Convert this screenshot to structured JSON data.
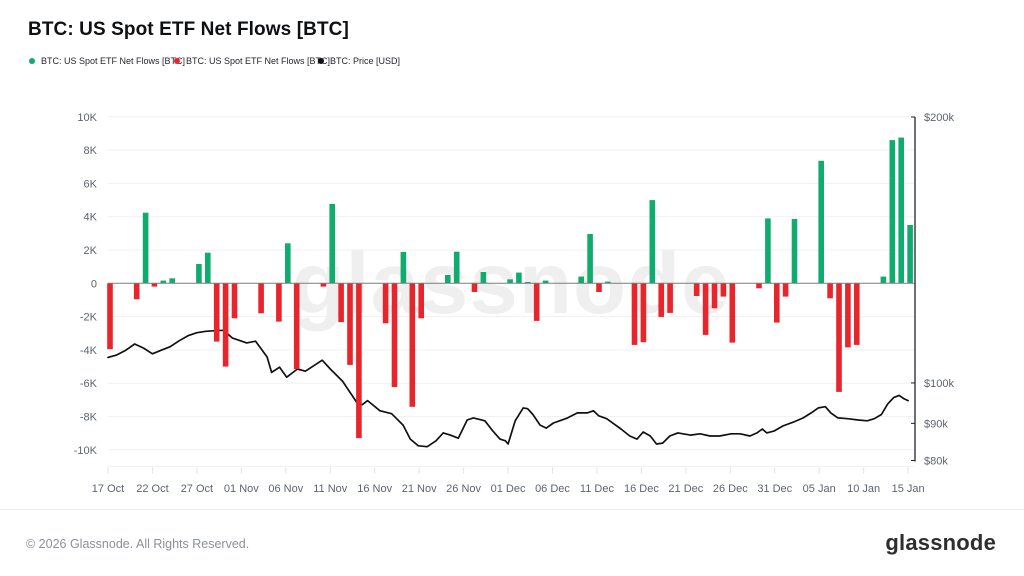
{
  "page": {
    "title": "BTC: US Spot ETF Net Flows [BTC]",
    "watermark": "glassnode",
    "footer": {
      "copyright": "© 2026 Glassnode. All Rights Reserved.",
      "brand": "glassnode"
    }
  },
  "legend": [
    {
      "label": "BTC: US Spot ETF Net Flows [BTC]",
      "color": "#10ab6f"
    },
    {
      "label": "BTC: US Spot ETF Net Flows [BTC]",
      "color": "#e8252b"
    },
    {
      "label": "BTC: Price [USD]",
      "color": "#111111"
    }
  ],
  "colors": {
    "positive_bar": "#10ab6f",
    "negative_bar": "#e8252b",
    "price_line": "#111111",
    "grid": "#f1f1f2",
    "zero_line": "#7d7d7d",
    "right_axis_line": "#20242b",
    "axis_text": "#5d6470",
    "watermark": "#efefef",
    "tick_mark": "#e0e2e5"
  },
  "chart_data": {
    "type": "bar",
    "title": "BTC: US Spot ETF Net Flows [BTC]",
    "series": [
      {
        "name": "BTC: US Spot ETF Net Flows [BTC]",
        "type": "bar",
        "axis": "left",
        "unit": "BTC",
        "color_positive": "#10ab6f",
        "color_negative": "#e8252b",
        "points": [
          {
            "date": "17 Oct",
            "day": 0,
            "value": -3950
          },
          {
            "date": "20 Oct",
            "day": 3,
            "value": -960
          },
          {
            "date": "21 Oct",
            "day": 4,
            "value": 4240
          },
          {
            "date": "22 Oct",
            "day": 5,
            "value": -200
          },
          {
            "date": "23 Oct",
            "day": 6,
            "value": 160
          },
          {
            "date": "24 Oct",
            "day": 7,
            "value": 300
          },
          {
            "date": "27 Oct",
            "day": 10,
            "value": 1160
          },
          {
            "date": "28 Oct",
            "day": 11,
            "value": 1840
          },
          {
            "date": "29 Oct",
            "day": 12,
            "value": -3500
          },
          {
            "date": "30 Oct",
            "day": 13,
            "value": -5000
          },
          {
            "date": "31 Oct",
            "day": 14,
            "value": -2100
          },
          {
            "date": "03 Nov",
            "day": 17,
            "value": -1800
          },
          {
            "date": "05 Nov",
            "day": 19,
            "value": -2300
          },
          {
            "date": "06 Nov",
            "day": 20,
            "value": 2400
          },
          {
            "date": "07 Nov",
            "day": 21,
            "value": -5150
          },
          {
            "date": "10 Nov",
            "day": 24,
            "value": -200
          },
          {
            "date": "11 Nov",
            "day": 25,
            "value": 4770
          },
          {
            "date": "12 Nov",
            "day": 26,
            "value": -2330
          },
          {
            "date": "13 Nov",
            "day": 27,
            "value": -4900
          },
          {
            "date": "14 Nov",
            "day": 28,
            "value": -9300
          },
          {
            "date": "17 Nov",
            "day": 31,
            "value": -2400
          },
          {
            "date": "18 Nov",
            "day": 32,
            "value": -6230
          },
          {
            "date": "19 Nov",
            "day": 33,
            "value": 1880
          },
          {
            "date": "20 Nov",
            "day": 34,
            "value": -7420
          },
          {
            "date": "21 Nov",
            "day": 35,
            "value": -2100
          },
          {
            "date": "24 Nov",
            "day": 38,
            "value": 500
          },
          {
            "date": "25 Nov",
            "day": 39,
            "value": 1900
          },
          {
            "date": "27 Nov",
            "day": 41,
            "value": -520
          },
          {
            "date": "28 Nov",
            "day": 42,
            "value": 680
          },
          {
            "date": "01 Dec",
            "day": 45,
            "value": 240
          },
          {
            "date": "02 Dec",
            "day": 46,
            "value": 640
          },
          {
            "date": "03 Dec",
            "day": 47,
            "value": 80
          },
          {
            "date": "04 Dec",
            "day": 48,
            "value": -2260
          },
          {
            "date": "05 Dec",
            "day": 49,
            "value": 160
          },
          {
            "date": "09 Dec",
            "day": 53,
            "value": 400
          },
          {
            "date": "10 Dec",
            "day": 54,
            "value": 2960
          },
          {
            "date": "11 Dec",
            "day": 55,
            "value": -520
          },
          {
            "date": "12 Dec",
            "day": 56,
            "value": 100
          },
          {
            "date": "15 Dec",
            "day": 59,
            "value": -3700
          },
          {
            "date": "16 Dec",
            "day": 60,
            "value": -3540
          },
          {
            "date": "17 Dec",
            "day": 61,
            "value": 5000
          },
          {
            "date": "18 Dec",
            "day": 62,
            "value": -2020
          },
          {
            "date": "19 Dec",
            "day": 63,
            "value": -1780
          },
          {
            "date": "22 Dec",
            "day": 66,
            "value": -760
          },
          {
            "date": "23 Dec",
            "day": 67,
            "value": -3100
          },
          {
            "date": "24 Dec",
            "day": 68,
            "value": -1500
          },
          {
            "date": "25 Dec",
            "day": 69,
            "value": -800
          },
          {
            "date": "26 Dec",
            "day": 70,
            "value": -3560
          },
          {
            "date": "29 Dec",
            "day": 73,
            "value": -300
          },
          {
            "date": "30 Dec",
            "day": 74,
            "value": 3900
          },
          {
            "date": "31 Dec",
            "day": 75,
            "value": -2360
          },
          {
            "date": "01 Jan",
            "day": 76,
            "value": -800
          },
          {
            "date": "02 Jan",
            "day": 77,
            "value": 3860
          },
          {
            "date": "05 Jan",
            "day": 80,
            "value": 7360
          },
          {
            "date": "06 Jan",
            "day": 81,
            "value": -900
          },
          {
            "date": "07 Jan",
            "day": 82,
            "value": -6520
          },
          {
            "date": "08 Jan",
            "day": 83,
            "value": -3850
          },
          {
            "date": "09 Jan",
            "day": 84,
            "value": -3700
          },
          {
            "date": "12 Jan",
            "day": 87,
            "value": 400
          },
          {
            "date": "13 Jan",
            "day": 88,
            "value": 8600
          },
          {
            "date": "14 Jan",
            "day": 89,
            "value": 8750
          },
          {
            "date": "15 Jan",
            "day": 90,
            "value": 3500
          }
        ]
      },
      {
        "name": "BTC: Price [USD]",
        "type": "line",
        "axis": "right",
        "unit": "USD",
        "color": "#111111",
        "days": [
          0,
          1,
          2,
          3,
          4,
          5,
          6,
          7,
          8,
          9,
          10,
          11,
          12,
          13,
          14,
          15.6,
          16.6,
          17.9,
          18.4,
          19.3,
          20.1,
          21.3,
          22.2,
          24.1,
          25,
          26.4,
          28,
          28.6,
          29.2,
          30.6,
          31.9,
          33.2,
          34,
          34.9,
          35.9,
          36.9,
          37.7,
          38.5,
          39.4,
          40.4,
          41.1,
          42.4,
          43.3,
          44.1,
          44.7,
          45,
          45.8,
          46.7,
          47.2,
          47.8,
          48.6,
          49.3,
          50.1,
          50.8,
          51.7,
          52.8,
          53.9,
          54.6,
          55.2,
          56.1,
          56.9,
          57.7,
          58.7,
          59.5,
          60.2,
          61,
          61.7,
          62.4,
          63.2,
          64.1,
          65.5,
          66.6,
          67.7,
          68.8,
          70.1,
          71.1,
          72.2,
          73,
          73.6,
          74.1,
          74.9,
          75.9,
          77.1,
          78.2,
          79.1,
          79.9,
          80.7,
          81.3,
          82.1,
          83.2,
          84.4,
          85.4,
          86.2,
          87,
          87.7,
          88.4,
          89,
          89.5,
          90
        ],
        "price_usd": [
          106900,
          107600,
          108900,
          110700,
          109500,
          107900,
          108900,
          109900,
          111600,
          113100,
          114000,
          114400,
          114600,
          114700,
          112400,
          111000,
          111500,
          107000,
          102800,
          104200,
          101500,
          103700,
          103100,
          106100,
          103700,
          100400,
          95000,
          94500,
          95500,
          93000,
          92300,
          89600,
          86400,
          84900,
          84700,
          86000,
          87800,
          87300,
          86600,
          90800,
          91300,
          90600,
          88200,
          86400,
          86000,
          85300,
          90600,
          93700,
          93500,
          92100,
          89600,
          88900,
          90100,
          90600,
          91300,
          92500,
          92500,
          93000,
          91800,
          91100,
          89900,
          88700,
          87100,
          86400,
          88000,
          87100,
          85300,
          85500,
          87100,
          87800,
          87300,
          87600,
          87100,
          87100,
          87600,
          87600,
          87100,
          87800,
          88700,
          87800,
          88200,
          89400,
          90300,
          91300,
          92500,
          93700,
          94000,
          92500,
          91300,
          91100,
          90800,
          90600,
          91100,
          92100,
          94700,
          96300,
          96800,
          96000,
          95500
        ]
      }
    ],
    "x_axis": {
      "tick_labels": [
        "17 Oct",
        "22 Oct",
        "27 Oct",
        "01 Nov",
        "06 Nov",
        "11 Nov",
        "16 Nov",
        "21 Nov",
        "26 Nov",
        "01 Dec",
        "06 Dec",
        "11 Dec",
        "16 Dec",
        "21 Dec",
        "26 Dec",
        "31 Dec",
        "05 Jan",
        "10 Jan",
        "15 Jan"
      ],
      "tick_day_offsets": [
        0,
        5,
        10,
        15,
        20,
        25,
        30,
        35,
        40,
        45,
        50,
        55,
        60,
        65,
        70,
        75,
        80,
        85,
        90
      ]
    },
    "y_axis_left": {
      "tick_labels": [
        "10K",
        "8K",
        "6K",
        "4K",
        "2K",
        "0",
        "-2K",
        "-4K",
        "-6K",
        "-8K",
        "-10K"
      ],
      "tick_values": [
        10000,
        8000,
        6000,
        4000,
        2000,
        0,
        -2000,
        -4000,
        -6000,
        -8000,
        -10000
      ],
      "range": [
        -10000,
        10000
      ],
      "grid": true
    },
    "y_axis_right": {
      "scale": "log",
      "tick_labels": [
        "$200k",
        "$100k",
        "$90k",
        "$80k"
      ],
      "tick_values": [
        200000,
        100000,
        90000,
        80000
      ],
      "range_usd": [
        80000,
        200000
      ]
    }
  }
}
